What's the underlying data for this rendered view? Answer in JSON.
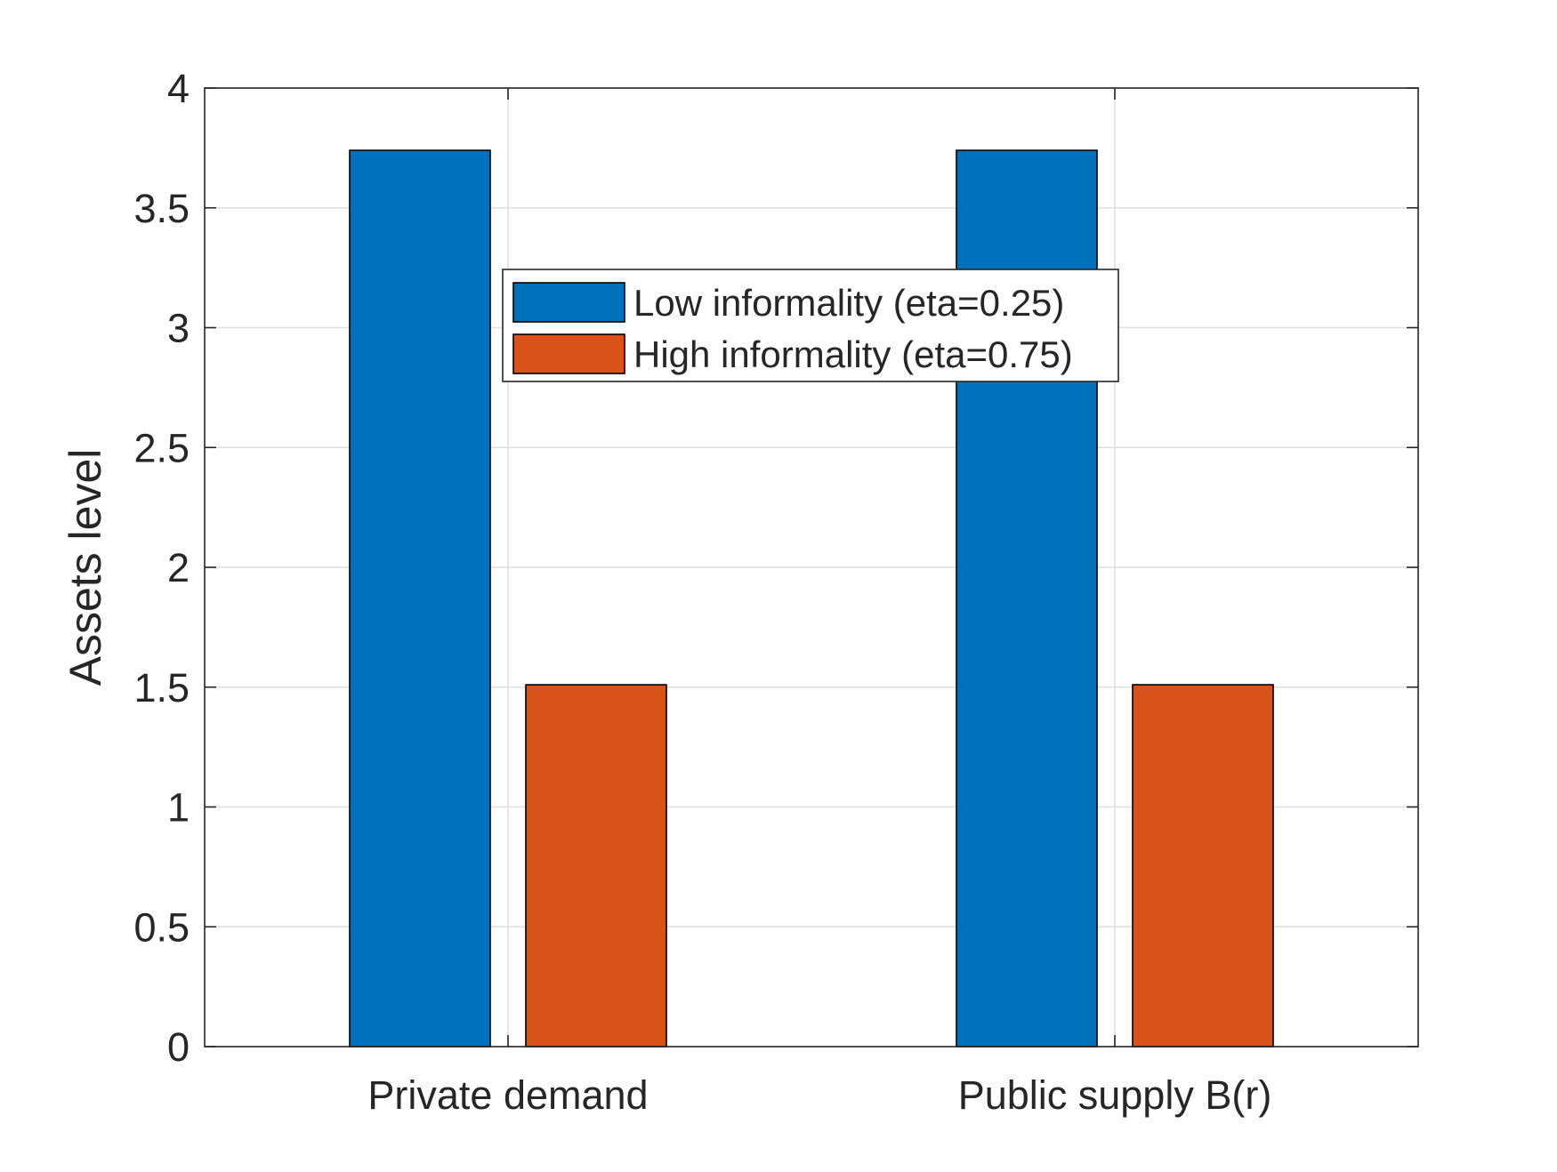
{
  "chart_data": {
    "type": "bar",
    "title": "",
    "xlabel": "",
    "ylabel": "Assets level",
    "categories": [
      "Private demand",
      "Public supply B(r)"
    ],
    "series": [
      {
        "name": "Low informality (eta=0.25)",
        "values": [
          3.74,
          3.74
        ],
        "color": "#0072BD"
      },
      {
        "name": "High informality (eta=0.75)",
        "values": [
          1.51,
          1.51
        ],
        "color": "#D95319"
      }
    ],
    "ylim": [
      0,
      4
    ],
    "yticks": [
      0,
      0.5,
      1,
      1.5,
      2,
      2.5,
      3,
      3.5,
      4
    ],
    "ytick_labels": [
      "0",
      "0.5",
      "1",
      "1.5",
      "2",
      "2.5",
      "3",
      "3.5",
      "4"
    ],
    "grid": true,
    "legend_position": "top-center"
  }
}
